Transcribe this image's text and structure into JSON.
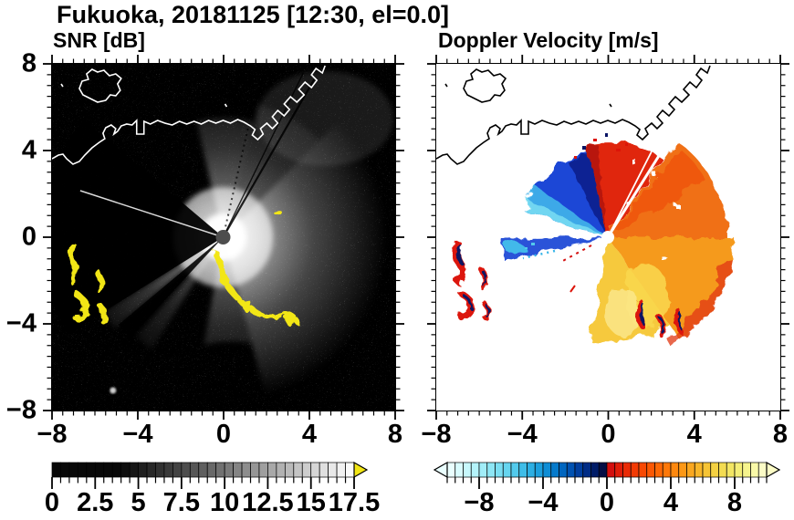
{
  "title": "Fukuoka, 20181125 [12:30, el=0.0]",
  "panels": [
    {
      "subtitle": "SNR [dB]"
    },
    {
      "subtitle": "Doppler Velocity [m/s]"
    }
  ],
  "axes": {
    "xlim": [
      -8,
      8
    ],
    "ylim": [
      -8,
      8
    ],
    "minor_step": 0.5,
    "x_tick_labels": [
      "−8",
      "−4",
      "0",
      "4",
      "8"
    ],
    "x_tick_values": [
      -8,
      -4,
      0,
      4,
      8
    ],
    "y_tick_labels": [
      "8",
      "4",
      "0",
      "−4",
      "−8"
    ],
    "y_tick_values": [
      8,
      4,
      0,
      -4,
      -8
    ]
  },
  "colorbars": {
    "snr": {
      "min": 0,
      "max": 17.5,
      "step": 0.5,
      "tick_labels": [
        "0",
        "2.5",
        "5",
        "7.5",
        "10",
        "12.5",
        "15",
        "17.5"
      ],
      "tick_values": [
        0,
        2.5,
        5,
        7.5,
        10,
        12.5,
        15,
        17.5
      ],
      "major_every": 2.5,
      "ramp_start": "#000000",
      "ramp_end": "#ffffff",
      "ramp_black_until": 4,
      "over_color": "#f2e614"
    },
    "doppler": {
      "min": -10,
      "max": 10,
      "step": 0.5,
      "tick_labels": [
        "−8",
        "−4",
        "0",
        "4",
        "8"
      ],
      "tick_values": [
        -8,
        -4,
        0,
        4,
        8
      ],
      "major_every": 4,
      "colors": [
        "#eaffff",
        "#d9fcfe",
        "#c7f8fc",
        "#b4f3fa",
        "#a1edf8",
        "#8de6f5",
        "#7adef2",
        "#66d5ef",
        "#52caec",
        "#3fbde8",
        "#2dafe3",
        "#1c9fdd",
        "#0e8dd5",
        "#057acb",
        "#0066c0",
        "#0052b2",
        "#003e9f",
        "#002c86",
        "#001c68",
        "#050e45",
        "#d30f0e",
        "#df1d09",
        "#ea2b06",
        "#f23a04",
        "#f84903",
        "#fc5803",
        "#fe6805",
        "#fe7809",
        "#fd880f",
        "#fc9816",
        "#faa71f",
        "#f8b629",
        "#f6c435",
        "#f4d142",
        "#f3dc51",
        "#f3e663",
        "#f4ee77",
        "#f6f48d",
        "#f9f9a8",
        "#fcfcc6"
      ]
    }
  },
  "colors": {
    "snr_background": "#000000",
    "doppler_background": "#ffffff",
    "coast_snr": "#ffffff",
    "coast_doppler": "#000000",
    "ship_yellow": "#f2e614",
    "ship_red": "#dc1408",
    "ship_navy": "#0a1464",
    "axis": "#000000"
  },
  "chart_data": [
    {
      "type": "heatmap",
      "subtype": "radar_ppi",
      "title": "SNR [dB]",
      "xlabel": "",
      "ylabel": "",
      "xlim": [
        -8,
        8
      ],
      "ylim": [
        -8,
        8
      ],
      "x_ticks": [
        -8,
        -4,
        0,
        4,
        8
      ],
      "y_ticks": [
        8,
        4,
        0,
        -4,
        -8
      ],
      "minor_tick_step": 0.5,
      "grid": false,
      "radar_center_xy": [
        0,
        0
      ],
      "colorbar": {
        "min": 0,
        "max": 17.5,
        "segment_step": 0.5,
        "tick_labels": [
          "0",
          "2.5",
          "5",
          "7.5",
          "10",
          "12.5",
          "15",
          "17.5"
        ],
        "colormap": "grayscale black to white",
        "over_arrow_color": "#f2e614"
      },
      "features": [
        "speckled dark-noise background over the full 16x16 km square",
        "bright radial echo glow centered at the radar origin (0,0), strongest within ~3 km, extending E-SE",
        "large black blocked sector toward W/WSW and a narrow black shadow wedge toward SW",
        "two thin dark shadow rays toward NE and one thin white ray toward WNW",
        "saturated yellow (>17.5 dB) ship/clutter echoes arcing from the center toward SE down to (2.5,-4)",
        "cluster of yellow ship echoes near (-7,-1.5) to (-5.5,-3.5)",
        "white coastline across the north with an island near (-5.5,5.5) and zigzag harbor piers toward (4,7)"
      ]
    },
    {
      "type": "heatmap",
      "subtype": "radar_ppi",
      "title": "Doppler Velocity [m/s]",
      "xlabel": "",
      "ylabel": "",
      "xlim": [
        -8,
        8
      ],
      "ylim": [
        -8,
        8
      ],
      "x_ticks": [
        -8,
        -4,
        0,
        4,
        8
      ],
      "y_ticks": [
        8,
        4,
        0,
        -4,
        -8
      ],
      "minor_tick_step": 0.5,
      "grid": false,
      "radar_center_xy": [
        0,
        0
      ],
      "colorbar": {
        "min": -10,
        "max": 10,
        "segment_step": 0.5,
        "tick_labels": [
          "−8",
          "−4",
          "0",
          "4",
          "8"
        ],
        "colormap": "diverging pale-cyan/blue/navy (negative) to red/orange/yellow/cream (positive)"
      },
      "features": [
        "white background with black coastline (same geography as SNR panel)",
        "blue/cyan negative-velocity wedge NW of the radar, values ~ -2 to -8 m/s, cyan at outer NW edge",
        "narrow blue beam pointing due W of the radar, ~4.5 km long",
        "broad positive-velocity fan from N through E to S: red near the N boundary, orange E, yellow-orange SE, yellow S, ~ +2 to +8 m/s",
        "thin white radial data-gap rays toward NNE",
        "paired navy/red ship echoes near (-7,-1.5) to (-5.5,-3.5) and along the southern fan rim near (1.5,-3.5) to (3.5,-4)",
        "scattered red and navy speckle pixels along the northern fan edge"
      ]
    }
  ]
}
